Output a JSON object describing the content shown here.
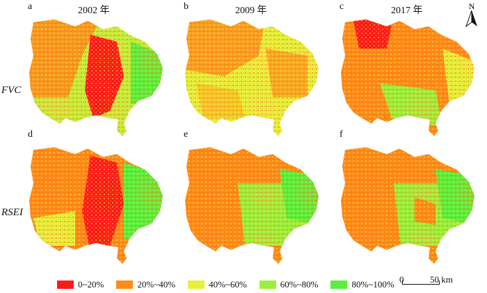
{
  "panels": [
    {
      "letter": "a",
      "year": "2002 年"
    },
    {
      "letter": "b",
      "year": "2009 年"
    },
    {
      "letter": "c",
      "year": "2017 年"
    },
    {
      "letter": "d",
      "year": ""
    },
    {
      "letter": "e",
      "year": ""
    },
    {
      "letter": "f",
      "year": ""
    }
  ],
  "rows": {
    "top": "FVC",
    "bottom": "RSEI"
  },
  "legend": [
    {
      "label": "0~20%",
      "color": "#ff1a1a"
    },
    {
      "label": "20%~40%",
      "color": "#ff8c1a"
    },
    {
      "label": "40%~60%",
      "color": "#e6f03c"
    },
    {
      "label": "60%~80%",
      "color": "#9cf03c"
    },
    {
      "label": "80%~100%",
      "color": "#5af03c"
    }
  ],
  "scale": {
    "start": "0",
    "end": "50 km"
  },
  "north": "N"
}
